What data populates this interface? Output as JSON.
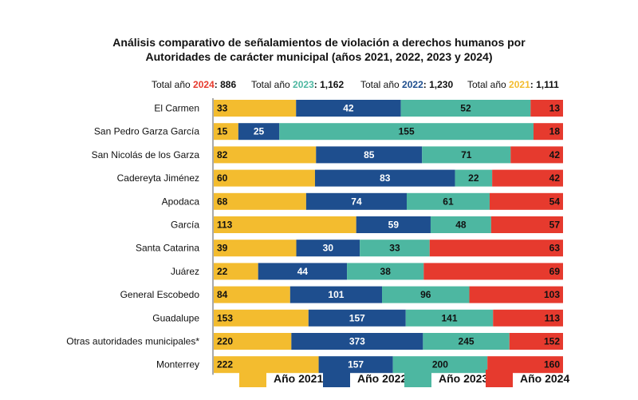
{
  "colors": {
    "y2021": "#F3BC2F",
    "y2022": "#1E4E8E",
    "y2023": "#4DB7A1",
    "y2024": "#E63A2E"
  },
  "chart_data": {
    "type": "bar",
    "orientation": "horizontal-stacked-100",
    "title": "Análisis comparativo de señalamientos de violación a derechos humanos por",
    "subtitle": "Autoridades de carácter municipal (años 2021, 2022, 2023 y 2024)",
    "categories": [
      "El Carmen",
      "San Pedro Garza García",
      "San Nicolás de los Garza",
      "Cadereyta Jiménez",
      "Apodaca",
      "García",
      "Santa Catarina",
      "Juárez",
      "General Escobedo",
      "Guadalupe",
      "Otras autoridades municipales*",
      "Monterrey"
    ],
    "series": [
      {
        "name": "Año 2021",
        "key": "y2021",
        "values": [
          33,
          15,
          82,
          60,
          68,
          113,
          39,
          22,
          84,
          153,
          220,
          222
        ]
      },
      {
        "name": "Año 2022",
        "key": "y2022",
        "values": [
          42,
          25,
          85,
          83,
          74,
          59,
          30,
          44,
          101,
          157,
          373,
          157
        ]
      },
      {
        "name": "Año 2023",
        "key": "y2023",
        "values": [
          52,
          155,
          71,
          22,
          61,
          48,
          33,
          38,
          96,
          141,
          245,
          200
        ]
      },
      {
        "name": "Año 2024",
        "key": "y2024",
        "values": [
          13,
          18,
          42,
          42,
          54,
          57,
          63,
          69,
          103,
          113,
          152,
          160
        ]
      }
    ],
    "totals": [
      {
        "prefix": "Total año ",
        "year": "2024",
        "suffix": ": ",
        "value": "886",
        "key": "y2024"
      },
      {
        "prefix": "Total año ",
        "year": "2023",
        "suffix": ": ",
        "value": "1,162",
        "key": "y2023"
      },
      {
        "prefix": "Total año ",
        "year": "2022",
        "suffix": ": ",
        "value": "1,230",
        "key": "y2022"
      },
      {
        "prefix": "Total año ",
        "year": "2021",
        "suffix": ": ",
        "value": "1,111",
        "key": "y2021"
      }
    ],
    "legend_position": "bottom"
  }
}
